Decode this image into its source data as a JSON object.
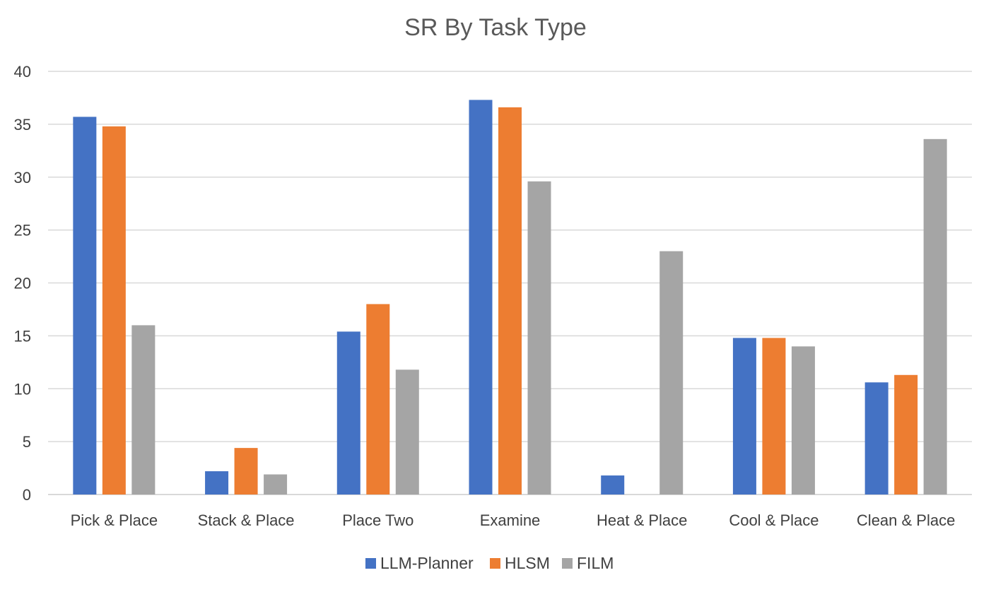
{
  "chart_data": {
    "type": "bar",
    "title": "SR By Task Type",
    "xlabel": "",
    "ylabel": "",
    "ylim": [
      0,
      40
    ],
    "yticks": [
      "0",
      "5",
      "10",
      "15",
      "20",
      "25",
      "30",
      "35",
      "40"
    ],
    "grid": true,
    "legend_position": "bottom",
    "categories": [
      "Pick & Place",
      "Stack & Place",
      "Place Two",
      "Examine",
      "Heat & Place",
      "Cool & Place",
      "Clean & Place"
    ],
    "series": [
      {
        "name": "LLM-Planner",
        "color": "#4472c4",
        "values": [
          35.7,
          2.2,
          15.4,
          37.3,
          1.8,
          14.8,
          10.6
        ]
      },
      {
        "name": "HLSM",
        "color": "#ed7d31",
        "values": [
          34.8,
          4.4,
          18.0,
          36.6,
          0,
          14.8,
          11.3
        ]
      },
      {
        "name": "FILM",
        "color": "#a5a5a5",
        "values": [
          16.0,
          1.9,
          11.8,
          29.6,
          23.0,
          14.0,
          33.6
        ]
      }
    ]
  }
}
